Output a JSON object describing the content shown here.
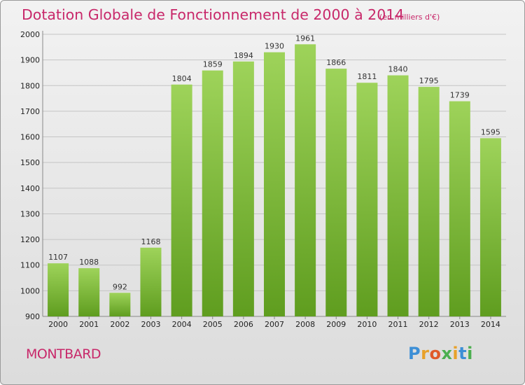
{
  "header": {
    "title": "Dotation Globale de Fonctionnement de 2000 à 2014",
    "unit": "(en milliers d'€)"
  },
  "commune": "MONTBARD",
  "logo": {
    "text": "Proxiti",
    "colors": [
      "#3d8fd6",
      "#e8a12a",
      "#e05a2a",
      "#4caf50",
      "#e8a12a",
      "#3d8fd6",
      "#4caf50"
    ]
  },
  "colors": {
    "accent": "#c8286a",
    "bar_top": "#9ed35a",
    "bar_bottom": "#5f9d1f"
  },
  "chart_data": {
    "type": "bar",
    "title": "Dotation Globale de Fonctionnement de 2000 à 2014",
    "subtitle": "(en milliers d'€)",
    "categories": [
      "2000",
      "2001",
      "2002",
      "2003",
      "2004",
      "2005",
      "2006",
      "2007",
      "2008",
      "2009",
      "2010",
      "2011",
      "2012",
      "2013",
      "2014"
    ],
    "values": [
      1107,
      1088,
      992,
      1168,
      1804,
      1859,
      1894,
      1930,
      1961,
      1866,
      1811,
      1840,
      1795,
      1739,
      1595
    ],
    "ylim": [
      900,
      2000
    ],
    "yticks": [
      900,
      1000,
      1100,
      1200,
      1300,
      1400,
      1500,
      1600,
      1700,
      1800,
      1900,
      2000
    ],
    "grid": true,
    "data_labels": true
  }
}
